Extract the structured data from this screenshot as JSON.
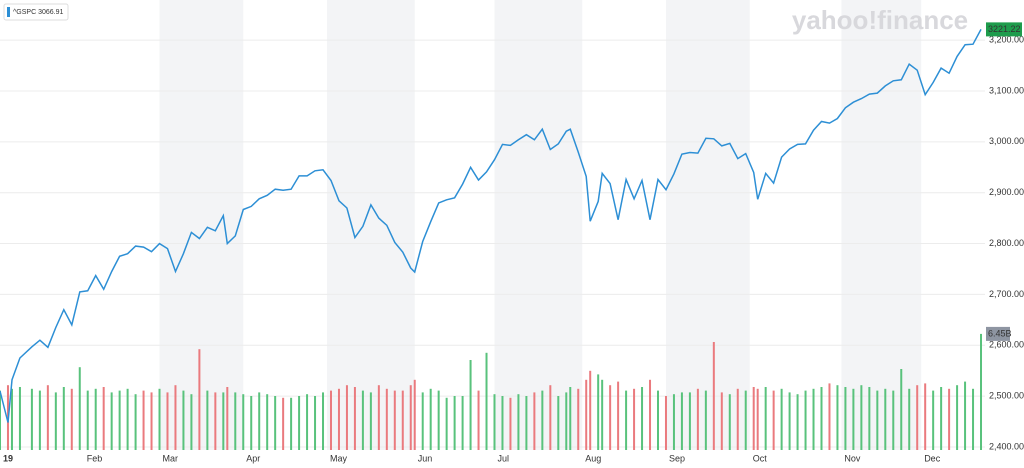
{
  "chart_data": {
    "type": "line",
    "watermark": "yahoo!finance",
    "x": [
      0,
      2,
      3,
      5,
      8,
      10,
      12,
      14,
      16,
      18,
      20,
      22,
      24,
      26,
      28,
      30,
      32,
      34,
      36,
      38,
      40,
      42,
      44,
      46,
      48,
      50,
      52,
      54,
      56,
      57,
      59,
      61,
      63,
      65,
      67,
      69,
      71,
      73,
      75,
      77,
      79,
      81,
      83,
      85,
      87,
      89,
      91,
      93,
      95,
      97,
      99,
      101,
      103,
      104,
      106,
      108,
      110,
      112,
      114,
      116,
      118,
      120,
      122,
      124,
      126,
      128,
      130,
      132,
      134,
      136,
      138,
      140,
      142,
      143,
      145,
      147,
      148,
      150,
      151,
      153,
      155,
      157,
      159,
      161,
      163,
      165,
      167,
      169,
      171,
      173,
      175,
      177,
      179,
      181,
      183,
      185,
      187,
      189,
      190,
      192,
      194,
      196,
      198,
      200,
      202,
      204,
      206,
      208,
      210,
      212,
      214,
      216,
      218,
      220,
      222,
      224,
      226,
      228,
      230,
      232,
      234,
      236,
      238,
      240,
      242,
      244,
      246
    ],
    "series": [
      {
        "name": "^GSPC 3066.91",
        "color": "#2d8fd5",
        "values": [
          2510,
          2448,
          2532,
          2575,
          2597,
          2610,
          2596,
          2635,
          2670,
          2640,
          2705,
          2707,
          2737,
          2710,
          2745,
          2775,
          2780,
          2795,
          2793,
          2784,
          2800,
          2790,
          2745,
          2780,
          2822,
          2810,
          2832,
          2825,
          2855,
          2800,
          2815,
          2867,
          2873,
          2888,
          2895,
          2907,
          2905,
          2907,
          2933,
          2933,
          2943,
          2945,
          2924,
          2884,
          2870,
          2812,
          2834,
          2876,
          2850,
          2836,
          2802,
          2783,
          2752,
          2744,
          2804,
          2843,
          2880,
          2886,
          2890,
          2917,
          2950,
          2925,
          2941,
          2965,
          2995,
          2993,
          3004,
          3014,
          3004,
          3025,
          2985,
          2996,
          3021,
          3025,
          2980,
          2932,
          2844,
          2883,
          2938,
          2918,
          2847,
          2926,
          2888,
          2924,
          2847,
          2926,
          2906,
          2937,
          2976,
          2979,
          2978,
          3007,
          3006,
          2992,
          2997,
          2967,
          2977,
          2940,
          2887,
          2938,
          2919,
          2970,
          2986,
          2995,
          2996,
          3023,
          3040,
          3037,
          3046,
          3067,
          3078,
          3085,
          3094,
          3096,
          3110,
          3120,
          3122,
          3153,
          3141,
          3093,
          3117,
          3145,
          3135,
          3168,
          3191,
          3192,
          3221.22
        ]
      }
    ],
    "volume": {
      "up_color": "#59c27c",
      "down_color": "#ea7a7e",
      "ylim": [
        0,
        25
      ],
      "values": [
        3.3,
        3.6,
        3.4,
        3.5,
        3.4,
        3.3,
        3.6,
        3.2,
        3.5,
        3.4,
        4.6,
        3.3,
        3.4,
        3.5,
        3.2,
        3.3,
        3.4,
        3.1,
        3.3,
        3.2,
        3.4,
        3.2,
        3.6,
        3.3,
        3.1,
        5.6,
        3.3,
        3.2,
        3.2,
        3.5,
        3.2,
        3.1,
        3.0,
        3.2,
        3.1,
        3.0,
        2.9,
        2.9,
        3.0,
        3.1,
        3.0,
        3.2,
        3.3,
        3.4,
        3.6,
        3.5,
        3.3,
        3.2,
        3.6,
        3.4,
        3.3,
        3.3,
        3.6,
        3.9,
        3.2,
        3.4,
        3.3,
        2.9,
        3.0,
        3.0,
        5.0,
        3.3,
        5.4,
        3.1,
        3.0,
        2.9,
        3.1,
        3.0,
        3.2,
        3.3,
        3.6,
        3.0,
        3.2,
        3.5,
        3.4,
        3.9,
        4.4,
        4.2,
        3.9,
        3.6,
        3.8,
        3.3,
        3.4,
        3.5,
        3.9,
        3.3,
        3.0,
        3.1,
        3.2,
        3.2,
        3.4,
        3.3,
        6.0,
        3.2,
        3.1,
        3.4,
        3.3,
        3.5,
        3.4,
        3.5,
        3.3,
        3.4,
        3.2,
        3.1,
        3.3,
        3.4,
        3.5,
        3.7,
        3.6,
        3.5,
        3.4,
        3.6,
        3.5,
        3.3,
        3.4,
        3.3,
        4.5,
        3.4,
        3.6,
        3.7,
        3.3,
        3.5,
        3.4,
        3.6,
        3.8,
        3.4,
        6.45
      ],
      "value_labels": [
        null,
        null,
        null,
        null,
        null,
        null,
        null,
        null,
        null,
        null,
        null,
        null,
        null,
        null,
        null,
        null,
        null,
        null,
        null,
        null,
        null,
        null,
        null,
        null,
        null,
        null,
        null,
        null,
        null,
        null,
        null,
        null,
        null,
        null,
        null,
        null,
        null,
        null,
        null,
        null,
        null,
        null,
        null,
        null,
        null,
        null,
        null,
        null,
        null,
        null,
        null,
        null,
        null,
        null,
        null,
        null,
        null,
        null,
        null,
        null,
        null,
        null,
        null,
        null,
        null,
        null,
        null,
        null,
        null,
        null,
        null,
        null,
        null,
        null,
        null,
        null,
        null,
        null,
        null,
        null,
        null,
        null,
        null,
        null,
        null,
        null,
        null,
        null,
        null,
        null,
        null,
        null,
        null,
        null,
        null,
        null,
        null,
        null,
        null,
        null,
        null,
        null,
        null,
        null,
        null,
        null,
        null,
        null,
        null,
        null,
        null,
        null,
        null,
        null,
        null,
        null,
        null,
        null,
        null,
        null,
        null,
        null,
        null,
        null,
        null,
        null,
        "6.45B"
      ]
    },
    "xlim": [
      0,
      247
    ],
    "xticks": [
      {
        "value": 0,
        "label": "19"
      },
      {
        "value": 21,
        "label": "Feb"
      },
      {
        "value": 40,
        "label": "Mar"
      },
      {
        "value": 61,
        "label": "Apr"
      },
      {
        "value": 82,
        "label": "May"
      },
      {
        "value": 104,
        "label": "Jun"
      },
      {
        "value": 124,
        "label": "Jul"
      },
      {
        "value": 146,
        "label": "Aug"
      },
      {
        "value": 167,
        "label": "Sep"
      },
      {
        "value": 188,
        "label": "Oct"
      },
      {
        "value": 211,
        "label": "Nov"
      },
      {
        "value": 231,
        "label": "Dec"
      }
    ],
    "ylim": [
      2394,
      3279
    ],
    "yticks": [
      {
        "value": 2400,
        "label": "2,400.00"
      },
      {
        "value": 2500,
        "label": "2,500.00"
      },
      {
        "value": 2600,
        "label": "2,600.00"
      },
      {
        "value": 2700,
        "label": "2,700.00"
      },
      {
        "value": 2800,
        "label": "2,800.00"
      },
      {
        "value": 2900,
        "label": "2,900.00"
      },
      {
        "value": 3000,
        "label": "3,000.00"
      },
      {
        "value": 3100,
        "label": "3,100.00"
      },
      {
        "value": 3200,
        "label": "3,200.00"
      }
    ],
    "grid": true,
    "last_color": "#1e9c4c",
    "volume_tag_color": "#8e95a2"
  }
}
